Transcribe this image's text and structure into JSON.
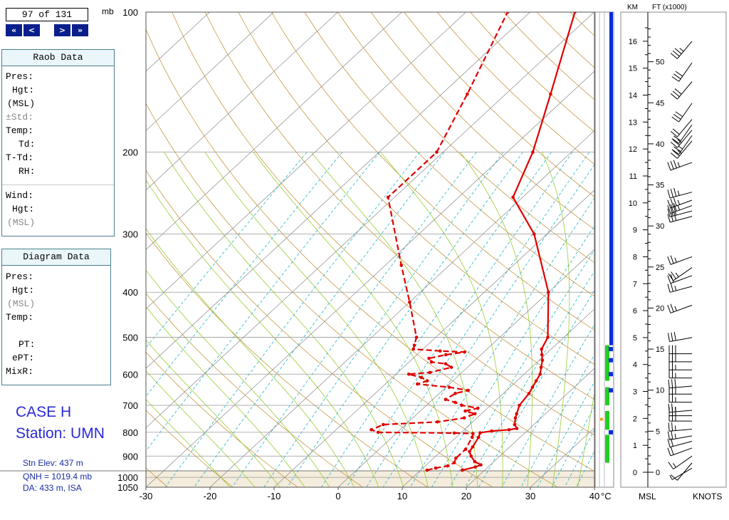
{
  "nav": {
    "counter": "97 of 131",
    "first": "«",
    "prev": "<",
    "next": ">",
    "last": "»"
  },
  "raob_panel": {
    "title": "Raob Data",
    "labels": [
      "Pres:",
      "Hgt:",
      "(MSL)",
      "±Std:",
      "Temp:",
      "Td:",
      "T-Td:",
      "RH:",
      "Wind:",
      "Hgt:",
      "(MSL)"
    ]
  },
  "diagram_panel": {
    "title": "Diagram Data",
    "labels": [
      "Pres:",
      "Hgt:",
      "(MSL)",
      "Temp:",
      "PT:",
      "ePT:",
      "MixR:"
    ]
  },
  "case": {
    "line1": "CASE H",
    "line2": "Station: UMN"
  },
  "station": {
    "elev": "Stn Elev: 437 m",
    "qnh": "QNH = 1019.4 mb",
    "da": "DA: 433 m, ISA"
  },
  "colors": {
    "temp": "#e00000",
    "isobar": "#999999",
    "isotherm": "#888888",
    "dry_adiabat": "#c08a2a",
    "moist_adiabat": "#9acd32",
    "mixing_ratio": "#21b6c4",
    "navy": "#0a1f8c",
    "cloud_blue": "#0a2adc",
    "cloud_green": "#22cc22"
  },
  "chart_data": {
    "type": "line",
    "title": "",
    "xlabel": "°C",
    "ylabel": "mb",
    "x_unit_label": "°C",
    "y_unit_label": "mb",
    "xlim": [
      -30,
      40
    ],
    "ylim": [
      1050,
      100
    ],
    "x_ticks": [
      -30,
      -20,
      -10,
      0,
      10,
      20,
      30,
      40
    ],
    "x_tick_labels": [
      "-30",
      "-20",
      "-10",
      "0",
      "10",
      "20",
      "30",
      "40"
    ],
    "pressure_ticks": [
      100,
      200,
      300,
      400,
      500,
      600,
      700,
      800,
      900,
      1000,
      1050
    ],
    "pressure_tick_labels": [
      "100",
      "200",
      "300",
      "400",
      "500",
      "600",
      "700",
      "800",
      "900",
      "1000",
      "1050"
    ],
    "skew_deg_per_ln_p": 34,
    "series": [
      {
        "key": "temperature",
        "style": "solid",
        "points": [
          [
            965,
            16.5
          ],
          [
            950,
            18.0
          ],
          [
            940,
            18.5
          ],
          [
            925,
            17.0
          ],
          [
            900,
            15.5
          ],
          [
            880,
            14.5
          ],
          [
            860,
            14.2
          ],
          [
            820,
            13.5
          ],
          [
            802,
            13.0
          ],
          [
            795,
            14.5
          ],
          [
            790,
            17.0
          ],
          [
            785,
            18.0
          ],
          [
            770,
            17.0
          ],
          [
            745,
            16.0
          ],
          [
            730,
            15.5
          ],
          [
            700,
            14.5
          ],
          [
            660,
            14.0
          ],
          [
            640,
            13.5
          ],
          [
            620,
            13.0
          ],
          [
            600,
            12.5
          ],
          [
            580,
            11.5
          ],
          [
            560,
            10.5
          ],
          [
            545,
            9.5
          ],
          [
            530,
            8.5
          ],
          [
            500,
            7.5
          ],
          [
            400,
            0.0
          ],
          [
            300,
            -12.0
          ],
          [
            250,
            -21.5
          ],
          [
            200,
            -26.0
          ],
          [
            150,
            -33.0
          ],
          [
            100,
            -43.0
          ]
        ]
      },
      {
        "key": "dewpoint",
        "style": "dashed",
        "points": [
          [
            965,
            11.0
          ],
          [
            955,
            12.0
          ],
          [
            945,
            13.5
          ],
          [
            930,
            14.0
          ],
          [
            910,
            13.5
          ],
          [
            870,
            13.5
          ],
          [
            820,
            12.5
          ],
          [
            805,
            12.0
          ],
          [
            803,
            9.0
          ],
          [
            800,
            -3.0
          ],
          [
            790,
            -4.5
          ],
          [
            770,
            -3.5
          ],
          [
            760,
            4.5
          ],
          [
            745,
            8.0
          ],
          [
            730,
            9.0
          ],
          [
            720,
            7.0
          ],
          [
            710,
            8.5
          ],
          [
            700,
            5.5
          ],
          [
            690,
            4.0
          ],
          [
            680,
            2.0
          ],
          [
            660,
            2.5
          ],
          [
            650,
            4.0
          ],
          [
            640,
            0.5
          ],
          [
            630,
            -5.0
          ],
          [
            620,
            -4.0
          ],
          [
            610,
            -5.5
          ],
          [
            600,
            -8.0
          ],
          [
            595,
            -5.0
          ],
          [
            580,
            -2.5
          ],
          [
            570,
            -4.0
          ],
          [
            565,
            -6.5
          ],
          [
            555,
            -7.5
          ],
          [
            545,
            -5.5
          ],
          [
            538,
            -3.0
          ],
          [
            535,
            -7.0
          ],
          [
            530,
            -11.5
          ],
          [
            520,
            -12.0
          ],
          [
            500,
            -13.0
          ],
          [
            420,
            -20.0
          ],
          [
            350,
            -27.5
          ],
          [
            250,
            -41.0
          ],
          [
            200,
            -41.0
          ],
          [
            150,
            -46.0
          ],
          [
            100,
            -53.5
          ]
        ]
      }
    ]
  },
  "cloud_column": {
    "blue_top_pressure": 100,
    "blue_bottom_pressure": 520,
    "green_ranges": [
      [
        520,
        620
      ],
      [
        640,
        700
      ],
      [
        720,
        790
      ],
      [
        810,
        930
      ]
    ],
    "blue_ticks": [
      530,
      560,
      600,
      650,
      800
    ],
    "orange_mark_pressure": 750
  },
  "height_scale": {
    "km_title": "KM",
    "ft_title": "FT (x1000)",
    "msl_label": "MSL",
    "knots_label": "KNOTS",
    "km_labels": [
      "0",
      "1",
      "2",
      "3",
      "4",
      "5",
      "6",
      "7",
      "8",
      "9",
      "10",
      "11",
      "12",
      "13",
      "14",
      "15",
      "16"
    ],
    "ft_labels": [
      "0",
      "5",
      "10",
      "15",
      "20",
      "25",
      "30",
      "35",
      "40",
      "45",
      "50"
    ],
    "km_top": 16.5
  },
  "wind_barbs": [
    [
      0.15,
      240,
      5
    ],
    [
      0.35,
      220,
      10
    ],
    [
      0.6,
      235,
      15
    ],
    [
      0.9,
      250,
      20
    ],
    [
      1.15,
      255,
      20
    ],
    [
      1.35,
      260,
      25
    ],
    [
      1.6,
      265,
      25
    ],
    [
      1.9,
      270,
      30
    ],
    [
      2.1,
      270,
      30
    ],
    [
      2.3,
      265,
      25
    ],
    [
      2.6,
      270,
      25
    ],
    [
      2.9,
      270,
      30
    ],
    [
      3.2,
      265,
      30
    ],
    [
      3.5,
      270,
      25
    ],
    [
      3.8,
      270,
      25
    ],
    [
      4.1,
      270,
      30
    ],
    [
      4.4,
      270,
      30
    ],
    [
      5.0,
      260,
      30
    ],
    [
      6.2,
      250,
      25
    ],
    [
      6.9,
      255,
      25
    ],
    [
      7.3,
      250,
      20
    ],
    [
      7.6,
      235,
      25
    ],
    [
      8.0,
      250,
      25
    ],
    [
      9.5,
      255,
      30
    ],
    [
      9.7,
      255,
      30
    ],
    [
      9.9,
      250,
      35
    ],
    [
      10.1,
      250,
      35
    ],
    [
      10.4,
      255,
      35
    ],
    [
      11.5,
      250,
      35
    ],
    [
      12.3,
      220,
      25
    ],
    [
      12.5,
      215,
      25
    ],
    [
      12.7,
      220,
      25
    ],
    [
      12.9,
      215,
      20
    ],
    [
      13.1,
      220,
      20
    ],
    [
      13.7,
      215,
      30
    ],
    [
      14.5,
      220,
      30
    ],
    [
      15.2,
      215,
      30
    ],
    [
      16.0,
      220,
      35
    ]
  ]
}
